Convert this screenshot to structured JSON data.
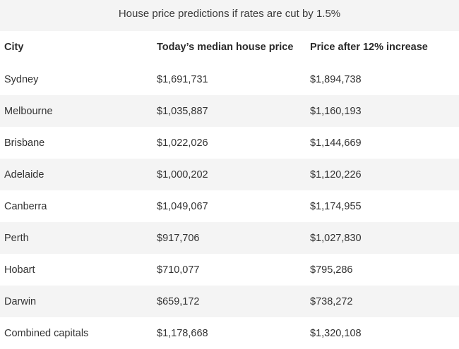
{
  "table": {
    "caption": "House price predictions if rates are cut by 1.5%",
    "headers": [
      "City",
      "Today’s median house price",
      "Price after 12% increase"
    ],
    "rows": [
      [
        "Sydney",
        "$1,691,731",
        "$1,894,738"
      ],
      [
        "Melbourne",
        "$1,035,887",
        "$1,160,193"
      ],
      [
        "Brisbane",
        "$1,022,026",
        "$1,144,669"
      ],
      [
        "Adelaide",
        "$1,000,202",
        "$1,120,226"
      ],
      [
        "Canberra",
        "$1,049,067",
        "$1,174,955"
      ],
      [
        "Perth",
        "$917,706",
        "$1,027,830"
      ],
      [
        "Hobart",
        "$710,077",
        "$795,286"
      ],
      [
        "Darwin",
        "$659,172",
        "$738,272"
      ],
      [
        "Combined capitals",
        "$1,178,668",
        "$1,320,108"
      ]
    ]
  }
}
